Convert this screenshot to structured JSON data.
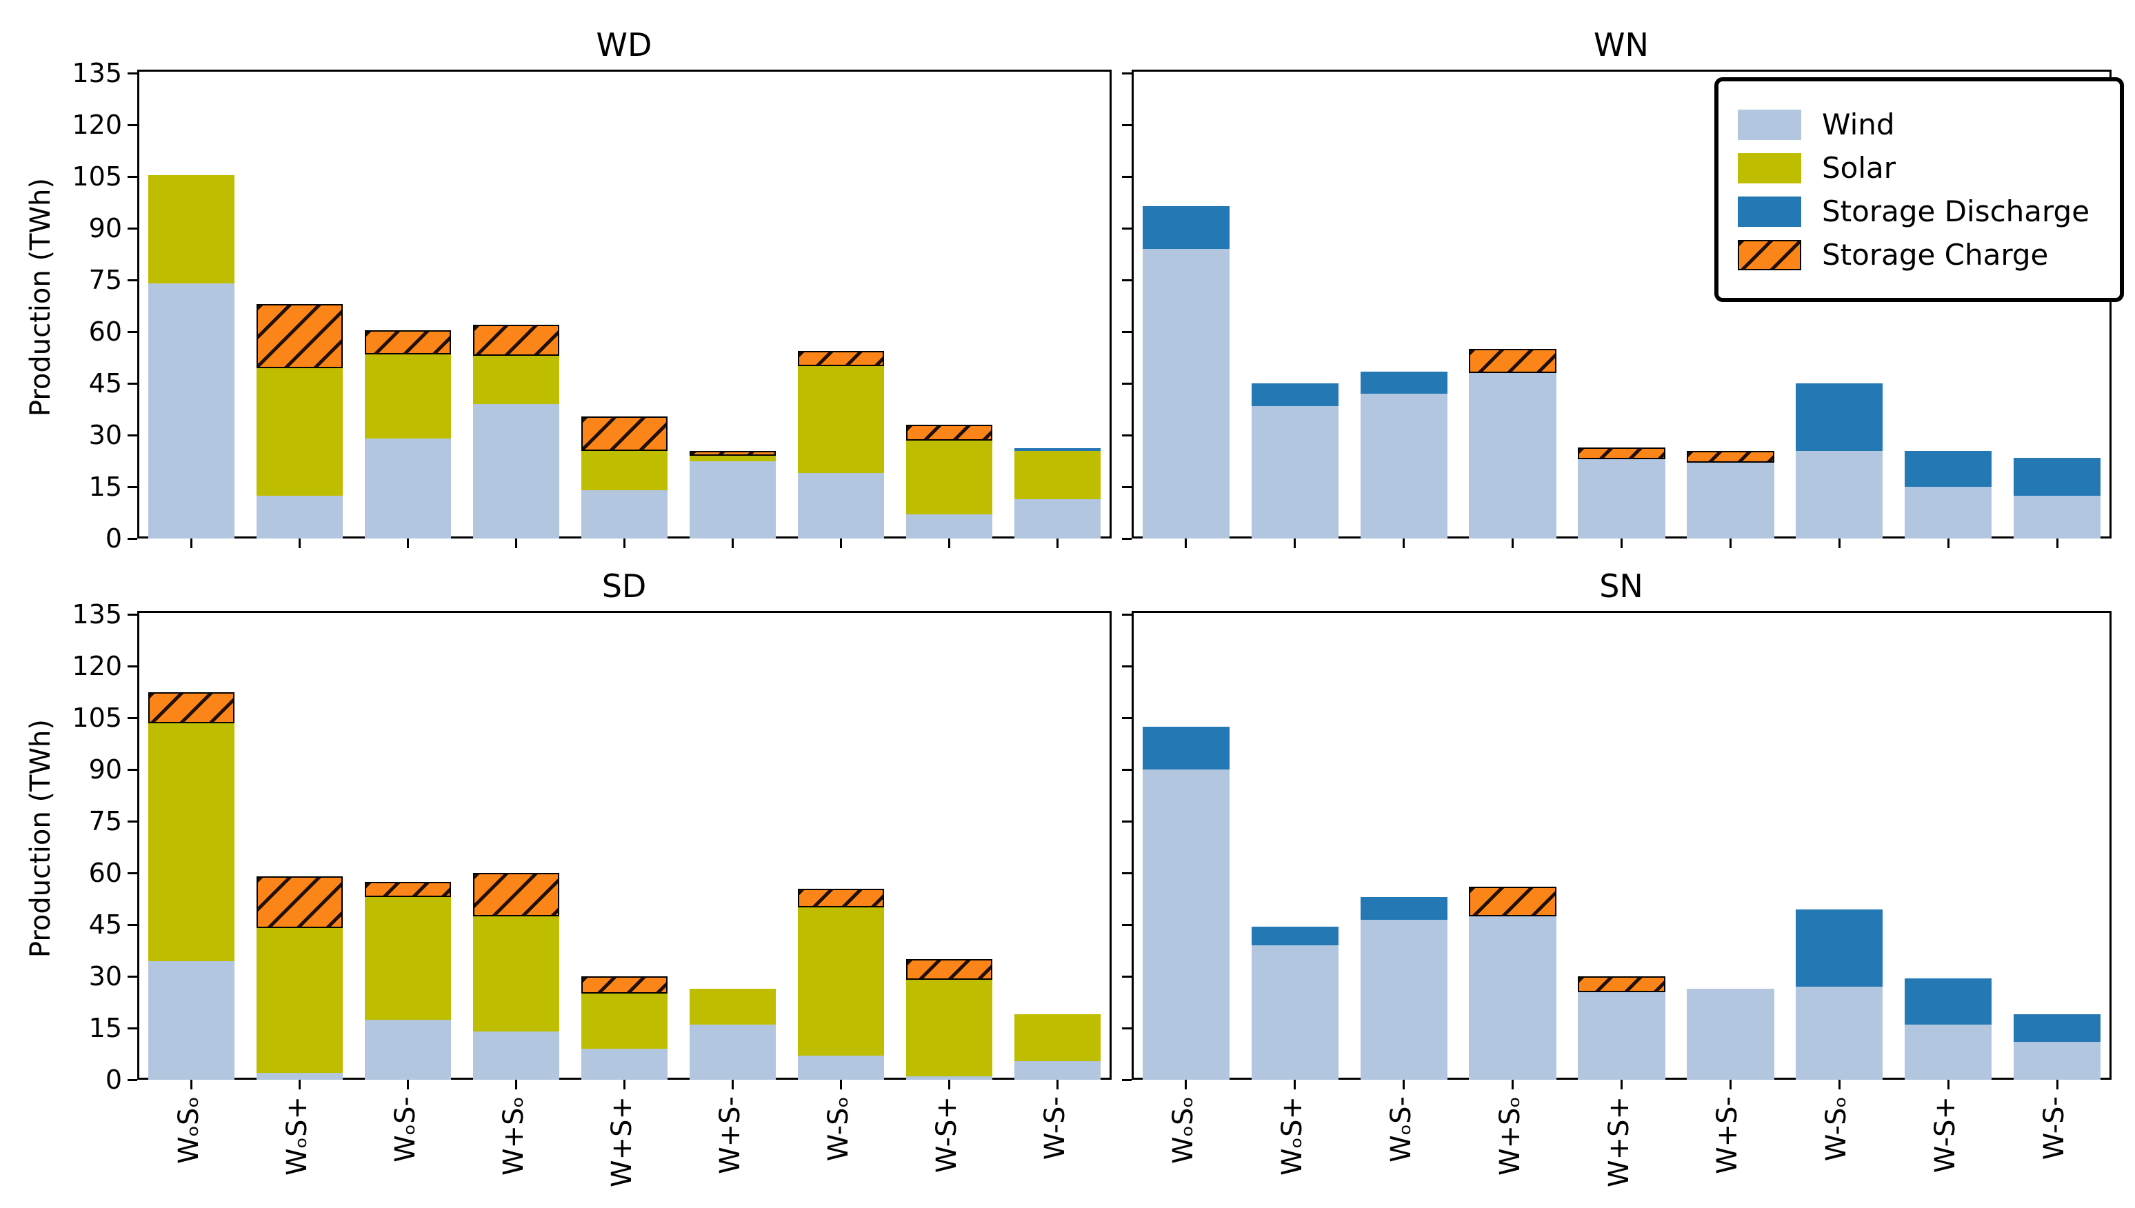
{
  "figure": {
    "ylabel": "Production (TWh)",
    "colors": {
      "wind": "#b3c6e0",
      "solar": "#bfbd00",
      "discharge": "#2478b4",
      "charge": "#fb8519",
      "hatch": "#000000",
      "axis": "#000000"
    },
    "legend": {
      "items": [
        {
          "label": "Wind",
          "key": "wind",
          "hatch": false
        },
        {
          "label": "Solar",
          "key": "solar",
          "hatch": false
        },
        {
          "label": "Storage Discharge",
          "key": "discharge",
          "hatch": false
        },
        {
          "label": "Storage Charge",
          "key": "charge",
          "hatch": true
        }
      ]
    }
  },
  "chart_data": [
    {
      "type": "bar",
      "stacked": true,
      "title": "WD",
      "ylabel": "Production (TWh)",
      "ylim": [
        0,
        135
      ],
      "yticks": [
        0,
        15,
        30,
        45,
        60,
        75,
        90,
        105,
        120,
        135
      ],
      "categories": [
        "WₒSₒ",
        "WₒS+",
        "WₒS-",
        "W+Sₒ",
        "W+S+",
        "W+S-",
        "W-Sₒ",
        "W-S+",
        "W-S-"
      ],
      "series": [
        {
          "name": "Wind",
          "key": "wind",
          "values": [
            74,
            12.5,
            29,
            39,
            14,
            22.5,
            19,
            7,
            11.5
          ]
        },
        {
          "name": "Solar",
          "key": "solar",
          "values": [
            31.5,
            37,
            24.5,
            14,
            11.5,
            1.5,
            31,
            21.5,
            14
          ]
        },
        {
          "name": "Storage Discharge",
          "key": "discharge",
          "values": [
            0,
            0,
            0,
            0,
            0,
            0,
            0,
            0,
            0.7
          ]
        },
        {
          "name": "Storage Charge",
          "key": "charge",
          "values": [
            0,
            18.5,
            7,
            9,
            10,
            1.5,
            4.5,
            4.5,
            0
          ]
        }
      ]
    },
    {
      "type": "bar",
      "stacked": true,
      "title": "WN",
      "ylim": [
        0,
        135
      ],
      "yticks": [
        0,
        15,
        30,
        45,
        60,
        75,
        90,
        105,
        120,
        135
      ],
      "categories": [
        "WₒSₒ",
        "WₒS+",
        "WₒS-",
        "W+Sₒ",
        "W+S+",
        "W+S-",
        "W-Sₒ",
        "W-S+",
        "W-S-"
      ],
      "series": [
        {
          "name": "Wind",
          "key": "wind",
          "values": [
            84,
            38.5,
            42,
            48,
            23,
            22,
            25.5,
            15,
            12.5
          ]
        },
        {
          "name": "Solar",
          "key": "solar",
          "values": [
            0,
            0,
            0,
            0,
            0,
            0,
            0,
            0,
            0
          ]
        },
        {
          "name": "Storage Discharge",
          "key": "discharge",
          "values": [
            12.5,
            6.5,
            6.5,
            0,
            0,
            0,
            19.5,
            10.5,
            11
          ]
        },
        {
          "name": "Storage Charge",
          "key": "charge",
          "values": [
            0,
            0,
            0,
            7,
            3.5,
            3.5,
            0,
            0,
            0
          ]
        }
      ]
    },
    {
      "type": "bar",
      "stacked": true,
      "title": "SD",
      "ylabel": "Production (TWh)",
      "ylim": [
        0,
        135
      ],
      "yticks": [
        0,
        15,
        30,
        45,
        60,
        75,
        90,
        105,
        120,
        135
      ],
      "categories": [
        "WₒSₒ",
        "WₒS+",
        "WₒS-",
        "W+Sₒ",
        "W+S+",
        "W+S-",
        "W-Sₒ",
        "W-S+",
        "W-S-"
      ],
      "series": [
        {
          "name": "Wind",
          "key": "wind",
          "values": [
            34.5,
            2,
            17.5,
            14,
            9,
            16,
            7,
            1,
            5.5
          ]
        },
        {
          "name": "Solar",
          "key": "solar",
          "values": [
            69,
            42,
            35.5,
            33.5,
            16,
            10.5,
            43,
            28,
            13.5
          ]
        },
        {
          "name": "Storage Discharge",
          "key": "discharge",
          "values": [
            0,
            0,
            0,
            0,
            0,
            0,
            0,
            0,
            0
          ]
        },
        {
          "name": "Storage Charge",
          "key": "charge",
          "values": [
            9,
            15,
            4.5,
            12.5,
            5,
            0,
            5.5,
            6,
            0
          ]
        }
      ]
    },
    {
      "type": "bar",
      "stacked": true,
      "title": "SN",
      "ylim": [
        0,
        135
      ],
      "yticks": [
        0,
        15,
        30,
        45,
        60,
        75,
        90,
        105,
        120,
        135
      ],
      "categories": [
        "WₒSₒ",
        "WₒS+",
        "WₒS-",
        "W+Sₒ",
        "W+S+",
        "W+S-",
        "W-Sₒ",
        "W-S+",
        "W-S-"
      ],
      "series": [
        {
          "name": "Wind",
          "key": "wind",
          "values": [
            90,
            39,
            46.5,
            47.5,
            25.5,
            26.5,
            27,
            16,
            11
          ]
        },
        {
          "name": "Solar",
          "key": "solar",
          "values": [
            0,
            0,
            0,
            0,
            0,
            0,
            0,
            0,
            0
          ]
        },
        {
          "name": "Storage Discharge",
          "key": "discharge",
          "values": [
            12.5,
            5.5,
            6.5,
            0,
            0,
            0,
            22.5,
            13.5,
            8
          ]
        },
        {
          "name": "Storage Charge",
          "key": "charge",
          "values": [
            0,
            0,
            0,
            8.5,
            4.5,
            0,
            0,
            0,
            0
          ]
        }
      ]
    }
  ]
}
